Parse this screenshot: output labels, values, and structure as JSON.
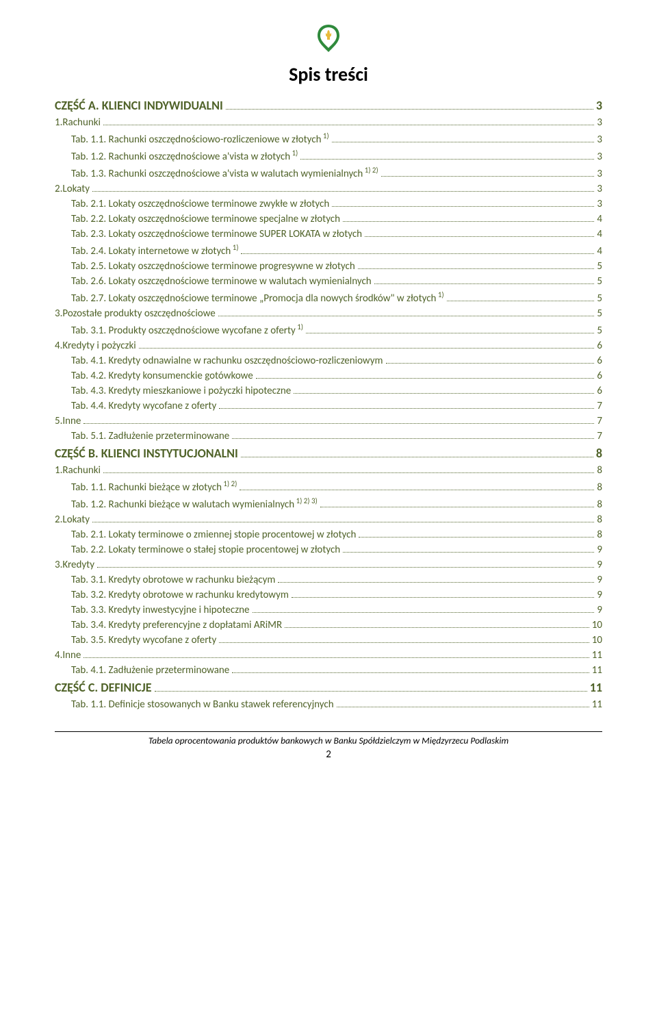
{
  "title": "Spis treści",
  "logo": {
    "outline_color": "#2f8a3c",
    "accent_color": "#e8b93a",
    "fill_color": "#ffffff"
  },
  "colors": {
    "text_main": "#000000",
    "toc_color": "#4f6228",
    "background": "#ffffff"
  },
  "fonts": {
    "title_size": 28,
    "section_size": 18,
    "entry_size": 15,
    "footer_size": 13.5
  },
  "toc": [
    {
      "level": "section",
      "label": "CZĘŚĆ A. KLIENCI INDYWIDUALNI",
      "page": "3"
    },
    {
      "level": "l1",
      "label": "1.Rachunki",
      "page": "3"
    },
    {
      "level": "l2",
      "label": "Tab. 1.1. Rachunki oszczędnościowo-rozliczeniowe w złotych",
      "sup": "1)",
      "page": "3"
    },
    {
      "level": "l2",
      "label": "Tab. 1.2. Rachunki oszczędnościowe a'vista w złotych",
      "sup": "1)",
      "page": "3"
    },
    {
      "level": "l2",
      "label": "Tab. 1.3. Rachunki oszczędnościowe a'vista w walutach wymienialnych",
      "sup": "1) 2)",
      "page": "3"
    },
    {
      "level": "l1",
      "label": "2.Lokaty",
      "page": "3"
    },
    {
      "level": "l2",
      "label": "Tab. 2.1. Lokaty oszczędnościowe terminowe zwykłe w złotych",
      "page": "3"
    },
    {
      "level": "l2",
      "label": "Tab. 2.2. Lokaty oszczędnościowe terminowe specjalne w złotych",
      "page": "4"
    },
    {
      "level": "l2",
      "label": "Tab. 2.3. Lokaty oszczędnościowe terminowe SUPER LOKATA w złotych",
      "page": "4"
    },
    {
      "level": "l2",
      "label": "Tab. 2.4. Lokaty internetowe w złotych",
      "sup": "1)",
      "page": "4"
    },
    {
      "level": "l2",
      "label": "Tab. 2.5. Lokaty oszczędnościowe terminowe progresywne w złotych",
      "page": "5"
    },
    {
      "level": "l2",
      "label": "Tab. 2.6. Lokaty oszczędnościowe terminowe w walutach wymienialnych",
      "page": "5"
    },
    {
      "level": "l2",
      "label": "Tab. 2.7. Lokaty oszczędnościowe terminowe „Promocja dla nowych środków\" w złotych",
      "sup": "1)",
      "page": "5"
    },
    {
      "level": "l1",
      "label": "3.Pozostałe produkty oszczędnościowe",
      "page": "5"
    },
    {
      "level": "l2",
      "label": "Tab. 3.1. Produkty oszczędnościowe wycofane z oferty",
      "sup": "1)",
      "page": "5"
    },
    {
      "level": "l1",
      "label": "4.Kredyty i pożyczki",
      "page": "6"
    },
    {
      "level": "l2",
      "label": "Tab. 4.1. Kredyty odnawialne w rachunku oszczędnościowo-rozliczeniowym",
      "page": "6"
    },
    {
      "level": "l2",
      "label": "Tab. 4.2. Kredyty konsumenckie gotówkowe",
      "page": "6"
    },
    {
      "level": "l2",
      "label": "Tab. 4.3. Kredyty mieszkaniowe i pożyczki hipoteczne",
      "page": "6"
    },
    {
      "level": "l2",
      "label": "Tab. 4.4. Kredyty wycofane z oferty",
      "page": "7"
    },
    {
      "level": "l1",
      "label": "5.Inne",
      "page": "7"
    },
    {
      "level": "l2",
      "label": "Tab. 5.1. Zadłużenie przeterminowane",
      "page": "7"
    },
    {
      "level": "section",
      "label": "CZĘŚĆ B. KLIENCI INSTYTUCJONALNI",
      "page": "8"
    },
    {
      "level": "l1",
      "label": "1.Rachunki",
      "page": "8"
    },
    {
      "level": "l2",
      "label": "Tab. 1.1. Rachunki bieżące w złotych",
      "sup": "1) 2)",
      "page": "8"
    },
    {
      "level": "l2",
      "label": "Tab. 1.2. Rachunki bieżące w walutach wymienialnych",
      "sup": "1) 2) 3)",
      "page": "8"
    },
    {
      "level": "l1",
      "label": "2.Lokaty",
      "page": "8"
    },
    {
      "level": "l2",
      "label": "Tab. 2.1. Lokaty terminowe o zmiennej stopie procentowej w złotych",
      "page": "8"
    },
    {
      "level": "l2",
      "label": "Tab. 2.2. Lokaty terminowe o stałej stopie procentowej w złotych",
      "page": "9"
    },
    {
      "level": "l1",
      "label": "3.Kredyty",
      "page": "9"
    },
    {
      "level": "l2",
      "label": "Tab. 3.1. Kredyty obrotowe w rachunku bieżącym",
      "page": "9"
    },
    {
      "level": "l2",
      "label": "Tab. 3.2. Kredyty obrotowe w rachunku kredytowym",
      "page": "9"
    },
    {
      "level": "l2",
      "label": "Tab. 3.3. Kredyty inwestycyjne i hipoteczne",
      "page": "9"
    },
    {
      "level": "l2",
      "label": "Tab. 3.4. Kredyty preferencyjne z dopłatami ARiMR",
      "page": "10"
    },
    {
      "level": "l2",
      "label": "Tab. 3.5. Kredyty wycofane z oferty",
      "page": "10"
    },
    {
      "level": "l1",
      "label": "4.Inne",
      "page": "11"
    },
    {
      "level": "l2",
      "label": "Tab. 4.1. Zadłużenie przeterminowane",
      "page": "11"
    },
    {
      "level": "section",
      "label": "CZĘŚĆ C. DEFINICJE",
      "page": "11"
    },
    {
      "level": "l2",
      "label": "Tab. 1.1. Definicje stosowanych w Banku stawek referencyjnych",
      "page": "11"
    }
  ],
  "footer_text": "Tabela oprocentowania produktów bankowych w Banku Spółdzielczym w Międzyrzecu Podlaskim",
  "page_number": "2"
}
